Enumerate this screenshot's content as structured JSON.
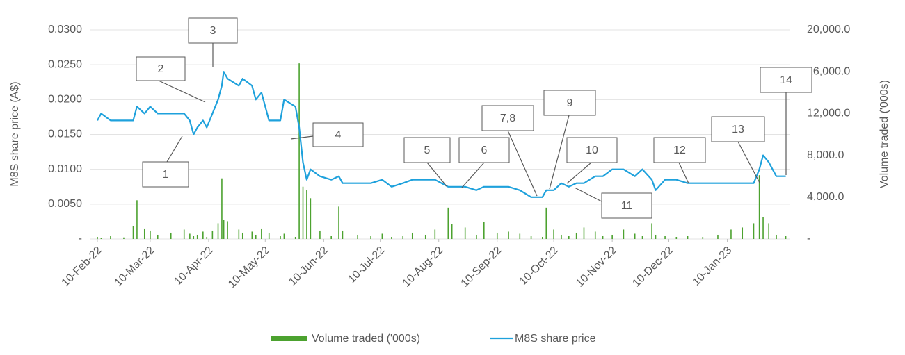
{
  "chart_data": {
    "type": "combo",
    "y_label": "M8S share price (A$)",
    "y2_label": "Volume traded ('000s)",
    "x": [
      "2022-02-10",
      "2022-02-12",
      "2022-02-17",
      "2022-02-24",
      "2022-03-01",
      "2022-03-03",
      "2022-03-07",
      "2022-03-10",
      "2022-03-14",
      "2022-03-21",
      "2022-03-28",
      "2022-03-31",
      "2022-04-02",
      "2022-04-04",
      "2022-04-07",
      "2022-04-09",
      "2022-04-12",
      "2022-04-15",
      "2022-04-17",
      "2022-04-18",
      "2022-04-20",
      "2022-04-26",
      "2022-04-28",
      "2022-05-03",
      "2022-05-05",
      "2022-05-08",
      "2022-05-12",
      "2022-05-18",
      "2022-05-20",
      "2022-05-26",
      "2022-05-28",
      "2022-05-30",
      "2022-06-01",
      "2022-06-03",
      "2022-06-08",
      "2022-06-14",
      "2022-06-18",
      "2022-06-20",
      "2022-06-28",
      "2022-07-05",
      "2022-07-11",
      "2022-07-16",
      "2022-07-22",
      "2022-07-27",
      "2022-08-03",
      "2022-08-08",
      "2022-08-15",
      "2022-08-17",
      "2022-08-24",
      "2022-08-30",
      "2022-09-03",
      "2022-09-10",
      "2022-09-16",
      "2022-09-22",
      "2022-09-28",
      "2022-10-04",
      "2022-10-06",
      "2022-10-10",
      "2022-10-14",
      "2022-10-18",
      "2022-10-22",
      "2022-10-26",
      "2022-11-01",
      "2022-11-05",
      "2022-11-10",
      "2022-11-16",
      "2022-11-22",
      "2022-11-26",
      "2022-12-01",
      "2022-12-03",
      "2022-12-08",
      "2022-12-14",
      "2022-12-20",
      "2022-12-28",
      "2023-01-05",
      "2023-01-12",
      "2023-01-18",
      "2023-01-24",
      "2023-01-27",
      "2023-01-29",
      "2023-02-01",
      "2023-02-05",
      "2023-02-10"
    ],
    "series": [
      {
        "name": "Volume traded ('000s)",
        "type": "bar",
        "axis": "y2",
        "color": "#4ca22f",
        "values": [
          200,
          100,
          300,
          150,
          1200,
          3700,
          1000,
          800,
          400,
          600,
          900,
          500,
          300,
          400,
          700,
          200,
          800,
          1500,
          5800,
          1800,
          1700,
          900,
          600,
          700,
          400,
          1000,
          600,
          300,
          500,
          200,
          16800,
          5000,
          4700,
          3900,
          800,
          300,
          3100,
          800,
          400,
          300,
          500,
          200,
          300,
          600,
          400,
          900,
          3000,
          1400,
          1100,
          400,
          1600,
          600,
          700,
          500,
          300,
          200,
          3000,
          900,
          400,
          300,
          600,
          1100,
          700,
          300,
          400,
          900,
          500,
          300,
          1500,
          400,
          300,
          200,
          300,
          200,
          400,
          900,
          1100,
          1500,
          6100,
          2100,
          1500,
          400,
          300
        ]
      },
      {
        "name": "M8S share price",
        "type": "line",
        "color": "#1ea1dc",
        "values": [
          0.017,
          0.018,
          0.017,
          0.017,
          0.017,
          0.019,
          0.018,
          0.019,
          0.018,
          0.018,
          0.018,
          0.017,
          0.015,
          0.016,
          0.017,
          0.016,
          0.018,
          0.02,
          0.022,
          0.024,
          0.023,
          0.022,
          0.023,
          0.022,
          0.02,
          0.021,
          0.017,
          0.017,
          0.02,
          0.019,
          0.016,
          0.011,
          0.0085,
          0.01,
          0.009,
          0.0085,
          0.009,
          0.008,
          0.008,
          0.008,
          0.0085,
          0.0075,
          0.008,
          0.0085,
          0.0085,
          0.0085,
          0.0075,
          0.0075,
          0.0075,
          0.007,
          0.0075,
          0.0075,
          0.0075,
          0.007,
          0.006,
          0.006,
          0.007,
          0.007,
          0.008,
          0.0075,
          0.008,
          0.008,
          0.009,
          0.009,
          0.01,
          0.01,
          0.009,
          0.01,
          0.0085,
          0.007,
          0.0085,
          0.0085,
          0.008,
          0.008,
          0.008,
          0.008,
          0.008,
          0.008,
          0.01,
          0.012,
          0.011,
          0.009,
          0.009
        ]
      }
    ],
    "xlim": [
      "2022-02-10",
      "2023-02-12"
    ],
    "xticks": [
      {
        "value": "2022-02-10",
        "label": "10-Feb-22"
      },
      {
        "value": "2022-03-10",
        "label": "10-Mar-22"
      },
      {
        "value": "2022-04-10",
        "label": "10-Apr-22"
      },
      {
        "value": "2022-05-10",
        "label": "10-May-22"
      },
      {
        "value": "2022-06-10",
        "label": "10-Jun-22"
      },
      {
        "value": "2022-07-10",
        "label": "10-Jul-22"
      },
      {
        "value": "2022-08-10",
        "label": "10-Aug-22"
      },
      {
        "value": "2022-09-10",
        "label": "10-Sep-22"
      },
      {
        "value": "2022-10-10",
        "label": "10-Oct-22"
      },
      {
        "value": "2022-11-10",
        "label": "10-Nov-22"
      },
      {
        "value": "2022-12-10",
        "label": "10-Dec-22"
      },
      {
        "value": "2023-01-10",
        "label": "10-Jan-23"
      }
    ],
    "ylim": [
      0,
      0.03
    ],
    "yticks": [
      {
        "value": 0,
        "label": "-"
      },
      {
        "value": 0.005,
        "label": "0.0050"
      },
      {
        "value": 0.01,
        "label": "0.0100"
      },
      {
        "value": 0.015,
        "label": "0.0150"
      },
      {
        "value": 0.02,
        "label": "0.0200"
      },
      {
        "value": 0.025,
        "label": "0.0250"
      },
      {
        "value": 0.03,
        "label": "0.0300"
      }
    ],
    "y2lim": [
      0,
      20000
    ],
    "y2ticks": [
      {
        "value": 0,
        "label": "-"
      },
      {
        "value": 4000,
        "label": "4,000.0"
      },
      {
        "value": 8000,
        "label": "8,000.0"
      },
      {
        "value": 12000,
        "label": "12,000.0"
      },
      {
        "value": 16000,
        "label": "16,000.0"
      },
      {
        "value": 20000,
        "label": "20,000.0"
      }
    ],
    "grid": true,
    "legend": "bottom",
    "annotations": [
      "1",
      "2",
      "3",
      "4",
      "5",
      "6",
      "7,8",
      "9",
      "10",
      "11",
      "12",
      "13",
      "14"
    ]
  }
}
